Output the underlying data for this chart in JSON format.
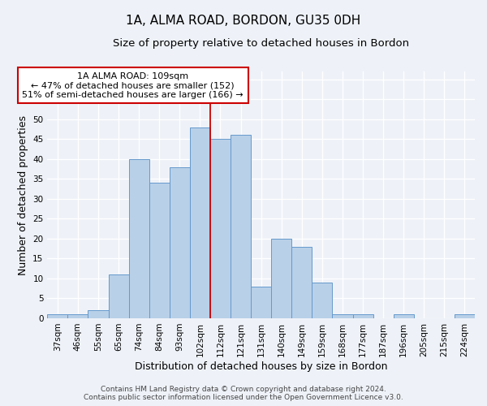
{
  "title": "1A, ALMA ROAD, BORDON, GU35 0DH",
  "subtitle": "Size of property relative to detached houses in Bordon",
  "xlabel": "Distribution of detached houses by size in Bordon",
  "ylabel": "Number of detached properties",
  "categories": [
    "37sqm",
    "46sqm",
    "55sqm",
    "65sqm",
    "74sqm",
    "84sqm",
    "93sqm",
    "102sqm",
    "112sqm",
    "121sqm",
    "131sqm",
    "140sqm",
    "149sqm",
    "159sqm",
    "168sqm",
    "177sqm",
    "187sqm",
    "196sqm",
    "205sqm",
    "215sqm",
    "224sqm"
  ],
  "values": [
    1,
    1,
    2,
    11,
    40,
    34,
    38,
    48,
    45,
    46,
    8,
    20,
    18,
    9,
    1,
    1,
    0,
    1,
    0,
    0,
    1
  ],
  "bar_color": "#b8d0e8",
  "bar_edge_color": "#6699cc",
  "bar_edge_width": 0.7,
  "ylim": [
    0,
    62
  ],
  "yticks": [
    0,
    5,
    10,
    15,
    20,
    25,
    30,
    35,
    40,
    45,
    50,
    55,
    60
  ],
  "vline_x_index": 7,
  "vline_color": "#cc0000",
  "annotation_line1": "1A ALMA ROAD: 109sqm",
  "annotation_line2": "← 47% of detached houses are smaller (152)",
  "annotation_line3": "51% of semi-detached houses are larger (166) →",
  "annotation_box_color": "#ffffff",
  "annotation_box_edge": "#cc0000",
  "background_color": "#eef2f8",
  "grid_color": "#ffffff",
  "footer_line1": "Contains HM Land Registry data © Crown copyright and database right 2024.",
  "footer_line2": "Contains public sector information licensed under the Open Government Licence v3.0.",
  "title_fontsize": 11,
  "subtitle_fontsize": 9.5,
  "xlabel_fontsize": 9,
  "ylabel_fontsize": 9,
  "tick_fontsize": 7.5,
  "annotation_fontsize": 8,
  "footer_fontsize": 6.5
}
